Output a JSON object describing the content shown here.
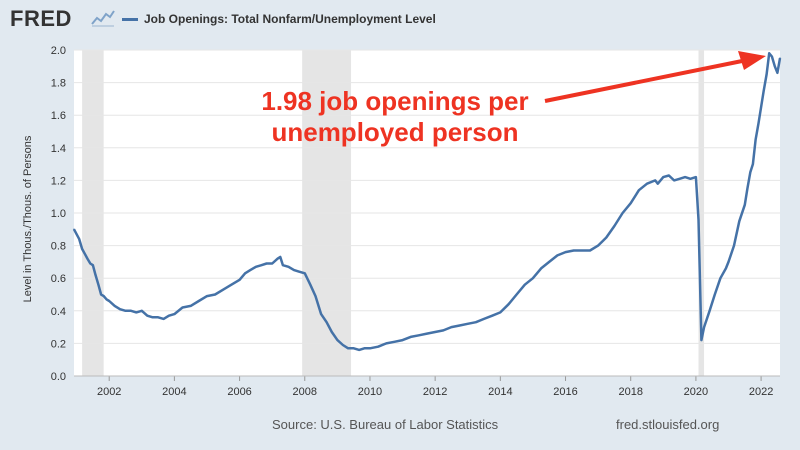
{
  "header": {
    "logo_text": "FRED",
    "logo_icon": "chart-trend-icon",
    "legend_label": "Job Openings: Total Nonfarm/Unemployment Level"
  },
  "annotation": {
    "line1": "1.98 job openings per",
    "line2": "unemployed person"
  },
  "footer": {
    "source": "Source: U.S. Bureau of Labor Statistics",
    "site": "fred.stlouisfed.org"
  },
  "colors": {
    "background": "#e1e9f0",
    "plot": "#ffffff",
    "series": "#4572a7",
    "recession": "#e5e5e5",
    "annotation": "#ee3322"
  },
  "chart_data": {
    "type": "line",
    "title": "Job Openings: Total Nonfarm/Unemployment Level",
    "ylabel": "Level in Thous./Thous. of Persons",
    "xlabel": "",
    "xlim": [
      2000.92,
      2022.58
    ],
    "ylim": [
      0,
      2.0
    ],
    "grid": true,
    "legend": "top-left",
    "x_ticks": [
      "2002",
      "2004",
      "2006",
      "2008",
      "2010",
      "2012",
      "2014",
      "2016",
      "2018",
      "2020",
      "2022"
    ],
    "y_ticks": [
      "0.0",
      "0.2",
      "0.4",
      "0.6",
      "0.8",
      "1.0",
      "1.2",
      "1.4",
      "1.6",
      "1.8",
      "2.0"
    ],
    "recessions": [
      [
        2001.17,
        2001.83
      ],
      [
        2007.92,
        2009.42
      ],
      [
        2020.08,
        2020.25
      ]
    ],
    "series": [
      {
        "name": "Job Openings: Total Nonfarm/Unemployment Level",
        "x": [
          2000.92,
          2001.0,
          2001.08,
          2001.17,
          2001.25,
          2001.33,
          2001.42,
          2001.5,
          2001.58,
          2001.67,
          2001.75,
          2001.83,
          2001.92,
          2002.0,
          2002.17,
          2002.33,
          2002.5,
          2002.67,
          2002.83,
          2003.0,
          2003.17,
          2003.33,
          2003.5,
          2003.67,
          2003.83,
          2004.0,
          2004.25,
          2004.5,
          2004.75,
          2005.0,
          2005.25,
          2005.5,
          2005.75,
          2006.0,
          2006.17,
          2006.33,
          2006.5,
          2006.67,
          2006.83,
          2007.0,
          2007.17,
          2007.25,
          2007.33,
          2007.5,
          2007.67,
          2007.83,
          2008.0,
          2008.17,
          2008.33,
          2008.5,
          2008.67,
          2008.83,
          2009.0,
          2009.17,
          2009.33,
          2009.5,
          2009.67,
          2009.83,
          2010.0,
          2010.25,
          2010.5,
          2010.75,
          2011.0,
          2011.25,
          2011.5,
          2011.75,
          2012.0,
          2012.25,
          2012.5,
          2012.75,
          2013.0,
          2013.25,
          2013.5,
          2013.75,
          2014.0,
          2014.25,
          2014.5,
          2014.75,
          2015.0,
          2015.25,
          2015.5,
          2015.75,
          2016.0,
          2016.25,
          2016.5,
          2016.75,
          2017.0,
          2017.25,
          2017.5,
          2017.75,
          2018.0,
          2018.25,
          2018.5,
          2018.75,
          2018.83,
          2019.0,
          2019.17,
          2019.33,
          2019.5,
          2019.67,
          2019.83,
          2020.0,
          2020.08,
          2020.17,
          2020.25,
          2020.42,
          2020.58,
          2020.75,
          2020.92,
          2021.0,
          2021.17,
          2021.33,
          2021.5,
          2021.58,
          2021.67,
          2021.75,
          2021.83,
          2021.92,
          2022.0,
          2022.08,
          2022.17,
          2022.25,
          2022.33,
          2022.42,
          2022.5,
          2022.58
        ],
        "values": [
          0.9,
          0.87,
          0.84,
          0.78,
          0.75,
          0.72,
          0.69,
          0.68,
          0.62,
          0.56,
          0.5,
          0.49,
          0.47,
          0.46,
          0.43,
          0.41,
          0.4,
          0.4,
          0.39,
          0.4,
          0.37,
          0.36,
          0.36,
          0.35,
          0.37,
          0.38,
          0.42,
          0.43,
          0.46,
          0.49,
          0.5,
          0.53,
          0.56,
          0.59,
          0.63,
          0.65,
          0.67,
          0.68,
          0.69,
          0.69,
          0.72,
          0.73,
          0.68,
          0.67,
          0.65,
          0.64,
          0.63,
          0.56,
          0.49,
          0.38,
          0.33,
          0.27,
          0.22,
          0.19,
          0.17,
          0.17,
          0.16,
          0.17,
          0.17,
          0.18,
          0.2,
          0.21,
          0.22,
          0.24,
          0.25,
          0.26,
          0.27,
          0.28,
          0.3,
          0.31,
          0.32,
          0.33,
          0.35,
          0.37,
          0.39,
          0.44,
          0.5,
          0.56,
          0.6,
          0.66,
          0.7,
          0.74,
          0.76,
          0.77,
          0.77,
          0.77,
          0.8,
          0.85,
          0.92,
          1.0,
          1.06,
          1.14,
          1.18,
          1.2,
          1.18,
          1.22,
          1.23,
          1.2,
          1.21,
          1.22,
          1.21,
          1.22,
          0.96,
          0.22,
          0.3,
          0.4,
          0.5,
          0.6,
          0.66,
          0.7,
          0.8,
          0.95,
          1.05,
          1.15,
          1.25,
          1.3,
          1.45,
          1.55,
          1.65,
          1.75,
          1.85,
          1.98,
          1.96,
          1.9,
          1.86,
          1.95
        ]
      }
    ]
  }
}
